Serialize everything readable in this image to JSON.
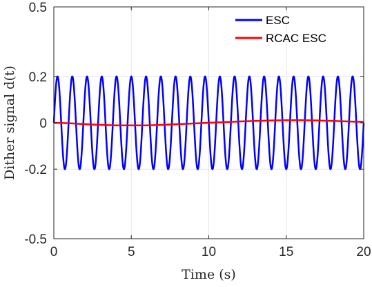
{
  "chart_data": {
    "type": "line",
    "title": "",
    "xlabel": "Time (s)",
    "ylabel": "Dither signal d(t)",
    "xlim": [
      0,
      20
    ],
    "ylim": [
      -0.5,
      0.5
    ],
    "x_ticks": [
      0,
      5,
      10,
      15,
      20
    ],
    "x_tick_labels": [
      "0",
      "5",
      "10",
      "15",
      "20"
    ],
    "y_ticks": [
      -0.5,
      -0.2,
      0,
      0.2,
      0.5
    ],
    "y_tick_labels": [
      "-0.5",
      "-0.2",
      "0",
      "0.2",
      "0.5"
    ],
    "grid": true,
    "legend_position": "top-right",
    "series": [
      {
        "name": "ESC",
        "color": "#0000ff",
        "description": "sinusoid, amplitude 0.2, period about 0.952 s (21 cycles over 0-20 s)",
        "amplitude": 0.2,
        "frequency_hz": 1.05,
        "phase": 0,
        "x": [
          0,
          0.24,
          0.48,
          0.71,
          0.95,
          1.19,
          1.43,
          1.67,
          1.9,
          2.14,
          2.38,
          20.0
        ],
        "y": [
          0,
          0.2,
          0,
          -0.2,
          0,
          0.2,
          0,
          -0.2,
          0,
          0.2,
          0,
          0.06
        ]
      },
      {
        "name": "RCAC ESC",
        "color": "#ff0000",
        "description": "slowly varying low-amplitude signal",
        "x": [
          0,
          1,
          2,
          3,
          4,
          5,
          6,
          7,
          8,
          9,
          10,
          11,
          12,
          13,
          14,
          15,
          16,
          17,
          18,
          19,
          20
        ],
        "y": [
          0,
          -0.002,
          -0.006,
          -0.009,
          -0.011,
          -0.011,
          -0.011,
          -0.009,
          -0.006,
          -0.003,
          0,
          0.003,
          0.006,
          0.008,
          0.01,
          0.011,
          0.011,
          0.01,
          0.008,
          0.006,
          0.004
        ]
      }
    ]
  }
}
